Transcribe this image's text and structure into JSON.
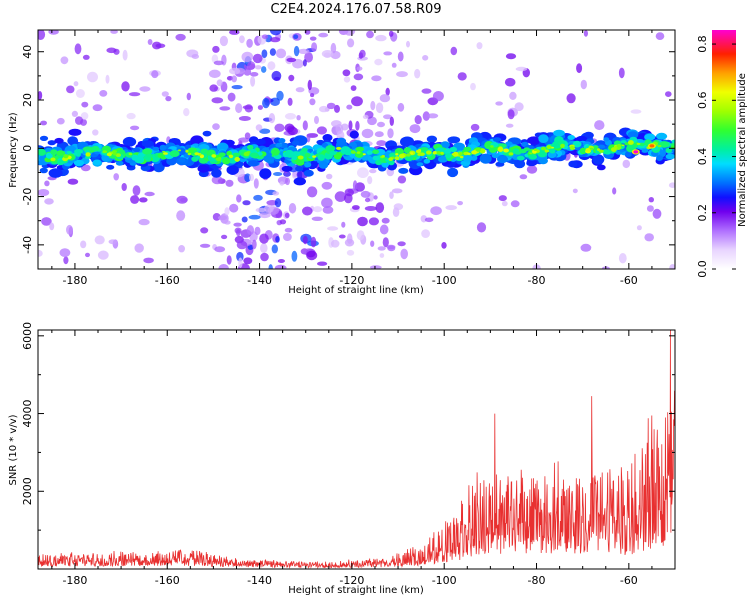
{
  "title": "C2E4.2024.176.07.58.R09",
  "chart_data": [
    {
      "type": "heatmap",
      "xlabel": "Height of straight line (km)",
      "ylabel": "Frequency (Hz)",
      "xlim": [
        -188,
        -50
      ],
      "ylim": [
        -50,
        49
      ],
      "x_ticks": [
        -180,
        -160,
        -140,
        -120,
        -100,
        -80,
        -60
      ],
      "y_ticks": [
        -40,
        -20,
        0,
        20,
        40
      ],
      "colorbar": {
        "label": "Normalized spectral amplitude",
        "range": [
          0.0,
          0.85
        ],
        "ticks": [
          0.0,
          0.2,
          0.4,
          0.6,
          0.8
        ],
        "colormap": "gist_ncar-like (white, violet, blue, cyan, green, yellow, red, magenta)"
      },
      "description_values": {
        "main_band_frequency_hz": 0,
        "main_band_halfwidth_hz": 4,
        "noise_region_x": [
          -145,
          -128
        ],
        "hot_spots": [
          {
            "x": -58.5,
            "y": -1.5,
            "amplitude": 0.85
          },
          {
            "x": -55,
            "y": 1,
            "amplitude": 0.7
          }
        ]
      }
    },
    {
      "type": "line",
      "xlabel": "Height of straight line (km)",
      "ylabel": "SNR (10 * v/v)",
      "xlim": [
        -188,
        -50
      ],
      "ylim": [
        0,
        6150
      ],
      "x_ticks": [
        -180,
        -160,
        -140,
        -120,
        -100,
        -80,
        -60
      ],
      "y_ticks": [
        2000,
        4000,
        6000
      ],
      "series": [
        {
          "color": "#e83030",
          "envelope": [
            {
              "x": -188,
              "base": 150,
              "amp": 300
            },
            {
              "x": -165,
              "base": 200,
              "amp": 350
            },
            {
              "x": -155,
              "base": 200,
              "amp": 450
            },
            {
              "x": -145,
              "base": 120,
              "amp": 200
            },
            {
              "x": -125,
              "base": 80,
              "amp": 120
            },
            {
              "x": -112,
              "base": 120,
              "amp": 250
            },
            {
              "x": -104,
              "base": 250,
              "amp": 550
            },
            {
              "x": -98,
              "base": 500,
              "amp": 1200
            },
            {
              "x": -90,
              "base": 900,
              "amp": 2200
            },
            {
              "x": -80,
              "base": 1000,
              "amp": 2000
            },
            {
              "x": -70,
              "base": 1000,
              "amp": 2100
            },
            {
              "x": -60,
              "base": 900,
              "amp": 2200
            },
            {
              "x": -53,
              "base": 1400,
              "amp": 3400
            },
            {
              "x": -50,
              "base": 2000,
              "amp": 4150
            }
          ],
          "peaks": [
            {
              "x": -89,
              "y": 4000
            },
            {
              "x": -68,
              "y": 4450
            },
            {
              "x": -55,
              "y": 3950
            },
            {
              "x": -51,
              "y": 6150
            }
          ]
        }
      ]
    }
  ]
}
